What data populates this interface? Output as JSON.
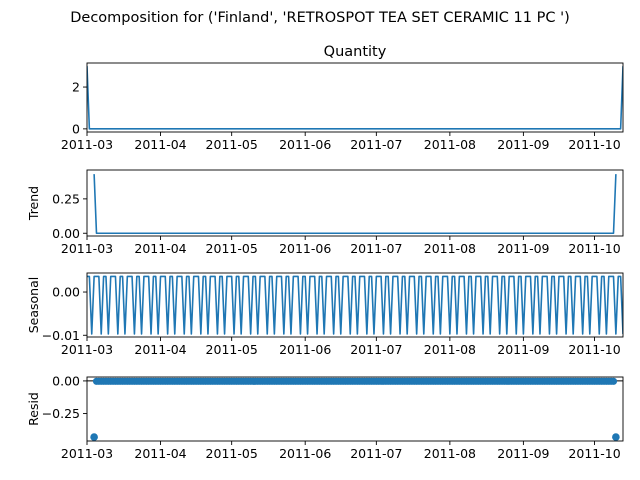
{
  "figure": {
    "title": "Decomposition for ('Finland', 'RETROSPOT TEA SET CERAMIC 11 PC ')"
  },
  "colors": {
    "series": "#1f77b4",
    "axis": "#000000",
    "background": "#ffffff"
  },
  "chart_data": [
    {
      "type": "line",
      "title": "Quantity",
      "ylabel": "",
      "xlim": [
        "2011-03-01",
        "2011-10-13"
      ],
      "ylim": [
        -0.15,
        3.15
      ],
      "x_ticks": [
        "2011-03",
        "2011-04",
        "2011-05",
        "2011-06",
        "2011-07",
        "2011-08",
        "2011-09",
        "2011-10"
      ],
      "y_ticks": [
        0,
        2
      ],
      "y_tick_labels": [
        "0",
        "2"
      ],
      "points": [
        {
          "x": "2011-03-01",
          "y": 3
        },
        {
          "x": "2011-03-02",
          "y": 0
        },
        {
          "x": "2011-10-12",
          "y": 0
        },
        {
          "x": "2011-10-13",
          "y": 3
        }
      ]
    },
    {
      "type": "line",
      "title": "",
      "ylabel": "Trend",
      "xlim": [
        "2011-03-01",
        "2011-10-13"
      ],
      "ylim": [
        -0.02,
        0.46
      ],
      "x_ticks": [
        "2011-03",
        "2011-04",
        "2011-05",
        "2011-06",
        "2011-07",
        "2011-08",
        "2011-09",
        "2011-10"
      ],
      "y_ticks": [
        0,
        0.25
      ],
      "y_tick_labels": [
        "0.00",
        "0.25"
      ],
      "points": [
        {
          "x": "2011-03-04",
          "y": 0.43
        },
        {
          "x": "2011-03-05",
          "y": 0
        },
        {
          "x": "2011-10-09",
          "y": 0
        },
        {
          "x": "2011-10-10",
          "y": 0.43
        }
      ]
    },
    {
      "type": "line",
      "title": "",
      "ylabel": "Seasonal",
      "xlim": [
        "2011-03-01",
        "2011-10-13"
      ],
      "ylim": [
        -0.0104,
        0.0044
      ],
      "x_ticks": [
        "2011-03",
        "2011-04",
        "2011-05",
        "2011-06",
        "2011-07",
        "2011-08",
        "2011-09",
        "2011-10"
      ],
      "y_ticks": [
        0,
        -0.01
      ],
      "y_tick_labels": [
        "0.00",
        "−0.01"
      ],
      "period_days": 7,
      "weekly_pattern": [
        0.0036,
        0.0036,
        -0.0097,
        0.0036,
        0.0036,
        0.0036,
        -0.0097
      ]
    },
    {
      "type": "scatter",
      "title": "",
      "ylabel": "Resid",
      "xlim": [
        "2011-03-01",
        "2011-10-13"
      ],
      "ylim": [
        -0.46,
        0.03
      ],
      "x_ticks": [
        "2011-03",
        "2011-04",
        "2011-05",
        "2011-06",
        "2011-07",
        "2011-08",
        "2011-09",
        "2011-10"
      ],
      "y_ticks": [
        0,
        -0.25
      ],
      "y_tick_labels": [
        "0.00",
        "−0.25"
      ],
      "baseline": 0,
      "outliers": [
        {
          "x": "2011-03-04",
          "y": -0.43
        },
        {
          "x": "2011-10-10",
          "y": -0.43
        }
      ],
      "value_range": [
        "2011-03-05",
        "2011-10-09"
      ],
      "value": -0.003
    }
  ]
}
